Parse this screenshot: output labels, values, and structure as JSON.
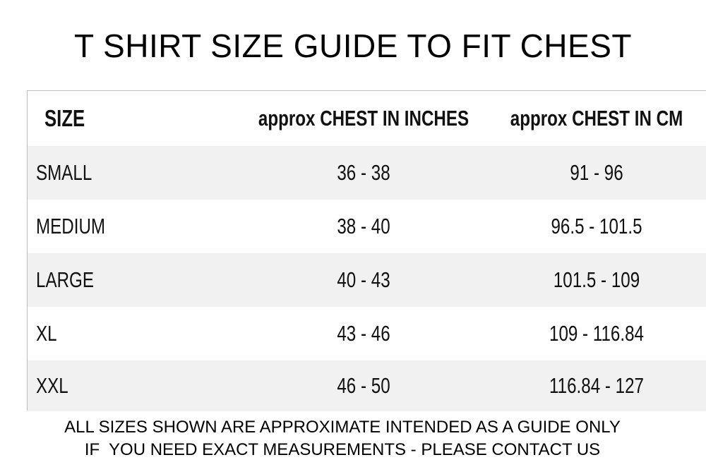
{
  "title": "T SHIRT SIZE GUIDE TO FIT CHEST",
  "table": {
    "headers": {
      "size": "SIZE",
      "inches": "approx CHEST IN INCHES",
      "cm": "approx CHEST IN CM"
    },
    "rows": [
      {
        "size": "SMALL",
        "inches": "36 - 38",
        "cm": "91 - 96"
      },
      {
        "size": "MEDIUM",
        "inches": "38 - 40",
        "cm": "96.5 - 101.5"
      },
      {
        "size": "LARGE",
        "inches": "40 - 43",
        "cm": "101.5 - 109"
      },
      {
        "size": "XL",
        "inches": "43 - 46",
        "cm": "109 - 116.84"
      },
      {
        "size": "XXL",
        "inches": "46 - 50",
        "cm": "116.84 - 127"
      }
    ]
  },
  "notes": [
    "ALL SIZES SHOWN ARE APPROXIMATE INTENDED AS A GUIDE ONLY",
    "IF  YOU NEED EXACT MEASUREMENTS - PLEASE CONTACT US"
  ]
}
